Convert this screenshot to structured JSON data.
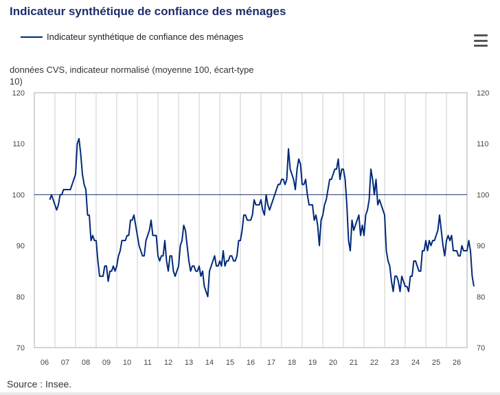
{
  "title": "Indicateur synthétique de confiance des ménages",
  "legend": {
    "label": "Indicateur synthétique de confiance des ménages",
    "color": "#00287a"
  },
  "menu_icon": "hamburger-menu-icon",
  "source": "Source : Insee.",
  "chart_data": {
    "type": "line",
    "title": "Indicateur synthétique de confiance des ménages",
    "ylabel": "données CVS, indicateur normalisé (moyenne 100, écart-type 10)",
    "xlabel": "",
    "ylim": [
      70,
      120
    ],
    "yticks": [
      70,
      80,
      90,
      100,
      110,
      120
    ],
    "reference_line": 100,
    "x_tick_labels": [
      "06",
      "07",
      "08",
      "09",
      "10",
      "11",
      "12",
      "13",
      "14",
      "15",
      "16",
      "17",
      "18",
      "19",
      "20",
      "21",
      "22",
      "23",
      "24",
      "25",
      "26"
    ],
    "grid": "vertical",
    "legend_position": "top-left",
    "series": [
      {
        "name": "Indicateur synthétique de confiance des ménages",
        "color": "#00287a",
        "start": "2005-10",
        "frequency": "monthly",
        "values": [
          99,
          100,
          99,
          98,
          97,
          98,
          100,
          100,
          101,
          101,
          101,
          101,
          101,
          102,
          103,
          104,
          110,
          111,
          108,
          104,
          102,
          101,
          96,
          96,
          91,
          92,
          91,
          91,
          87,
          84,
          84,
          84,
          86,
          86,
          83,
          85,
          85,
          86,
          85,
          86,
          88,
          89,
          91,
          91,
          91,
          92,
          92,
          95,
          95,
          96,
          94,
          92,
          90,
          89,
          88,
          88,
          91,
          92,
          93,
          95,
          92,
          92,
          92,
          88,
          87,
          88,
          88,
          91,
          87,
          85,
          88,
          88,
          85,
          84,
          85,
          86,
          90,
          91,
          94,
          93,
          90,
          87,
          85,
          86,
          86,
          85,
          85,
          86,
          84,
          85,
          82,
          81,
          80,
          85,
          86,
          87,
          88,
          86,
          86,
          87,
          86,
          89,
          86,
          87,
          87,
          88,
          88,
          87,
          87,
          88,
          91,
          91,
          93,
          96,
          96,
          95,
          95,
          95,
          96,
          99,
          98,
          98,
          98,
          99,
          97,
          96,
          100,
          98,
          97,
          98,
          99,
          100,
          101,
          102,
          102,
          103,
          103,
          102,
          103,
          109,
          105,
          104,
          103,
          101,
          105,
          107,
          106,
          102,
          102,
          103,
          100,
          98,
          98,
          98,
          95,
          96,
          94,
          90,
          95,
          96,
          98,
          99,
          101,
          103,
          103,
          104,
          105,
          105,
          107,
          103,
          105,
          105,
          103,
          98,
          91,
          89,
          95,
          93,
          94,
          95,
          96,
          92,
          94,
          92,
          96,
          97,
          99,
          105,
          103,
          100,
          103,
          98,
          99,
          98,
          97,
          96,
          89,
          87,
          86,
          83,
          81,
          84,
          84,
          83,
          81,
          84,
          83,
          82,
          82,
          81,
          84,
          84,
          87,
          87,
          86,
          85,
          85,
          89,
          89,
          91,
          89,
          91,
          90,
          91,
          91,
          92,
          93,
          96,
          93,
          90,
          88,
          91,
          92,
          91,
          92,
          89,
          89,
          89,
          88,
          88,
          90,
          89,
          89,
          89,
          91,
          89,
          84,
          82
        ]
      }
    ]
  }
}
